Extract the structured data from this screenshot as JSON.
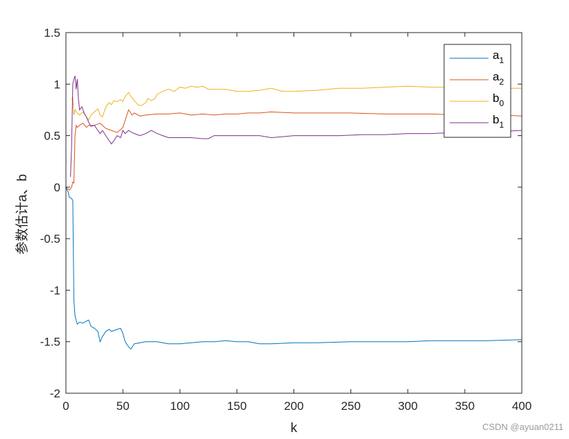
{
  "chart_data": {
    "type": "line",
    "xlabel": "k",
    "ylabel": "参数估计a、b",
    "xlim": [
      0,
      400
    ],
    "ylim": [
      -2,
      1.5
    ],
    "x_ticks": [
      0,
      50,
      100,
      150,
      200,
      250,
      300,
      350,
      400
    ],
    "x_tick_labels": [
      "0",
      "50",
      "100",
      "150",
      "200",
      "250",
      "300",
      "350",
      "400"
    ],
    "y_ticks": [
      1.5,
      1,
      0.5,
      0,
      -0.5,
      -1,
      -1.5,
      -2
    ],
    "y_tick_labels": [
      "1.5",
      "1",
      "0.5",
      "0",
      "-0.5",
      "-1",
      "-1.5",
      "-2"
    ],
    "grid": false,
    "legend_position": "top-right",
    "series": [
      {
        "name": "a",
        "sub": "1",
        "color": "#0072BD",
        "points": [
          [
            0,
            0
          ],
          [
            2,
            -0.05
          ],
          [
            3,
            -0.1
          ],
          [
            5,
            -0.11
          ],
          [
            6,
            -0.13
          ],
          [
            7,
            -1.1
          ],
          [
            8,
            -1.25
          ],
          [
            10,
            -1.33
          ],
          [
            12,
            -1.31
          ],
          [
            15,
            -1.32
          ],
          [
            18,
            -1.3
          ],
          [
            20,
            -1.29
          ],
          [
            22,
            -1.35
          ],
          [
            25,
            -1.37
          ],
          [
            28,
            -1.4
          ],
          [
            30,
            -1.5
          ],
          [
            32,
            -1.45
          ],
          [
            35,
            -1.4
          ],
          [
            38,
            -1.38
          ],
          [
            40,
            -1.4
          ],
          [
            45,
            -1.38
          ],
          [
            48,
            -1.37
          ],
          [
            50,
            -1.42
          ],
          [
            52,
            -1.5
          ],
          [
            55,
            -1.55
          ],
          [
            57,
            -1.57
          ],
          [
            60,
            -1.52
          ],
          [
            65,
            -1.51
          ],
          [
            70,
            -1.5
          ],
          [
            80,
            -1.5
          ],
          [
            90,
            -1.52
          ],
          [
            100,
            -1.52
          ],
          [
            110,
            -1.51
          ],
          [
            120,
            -1.5
          ],
          [
            130,
            -1.5
          ],
          [
            140,
            -1.49
          ],
          [
            150,
            -1.5
          ],
          [
            160,
            -1.5
          ],
          [
            170,
            -1.52
          ],
          [
            180,
            -1.52
          ],
          [
            200,
            -1.51
          ],
          [
            220,
            -1.51
          ],
          [
            250,
            -1.5
          ],
          [
            280,
            -1.5
          ],
          [
            300,
            -1.5
          ],
          [
            320,
            -1.49
          ],
          [
            350,
            -1.49
          ],
          [
            370,
            -1.49
          ],
          [
            400,
            -1.48
          ]
        ]
      },
      {
        "name": "a",
        "sub": "2",
        "color": "#D95319",
        "points": [
          [
            0,
            0
          ],
          [
            2,
            -0.02
          ],
          [
            3,
            -0.03
          ],
          [
            5,
            0
          ],
          [
            6,
            0.05
          ],
          [
            7,
            0.04
          ],
          [
            8,
            0.5
          ],
          [
            9,
            0.6
          ],
          [
            10,
            0.58
          ],
          [
            12,
            0.6
          ],
          [
            15,
            0.62
          ],
          [
            18,
            0.58
          ],
          [
            20,
            0.6
          ],
          [
            25,
            0.6
          ],
          [
            30,
            0.62
          ],
          [
            35,
            0.57
          ],
          [
            40,
            0.55
          ],
          [
            45,
            0.53
          ],
          [
            50,
            0.58
          ],
          [
            52,
            0.65
          ],
          [
            55,
            0.75
          ],
          [
            58,
            0.7
          ],
          [
            60,
            0.72
          ],
          [
            65,
            0.69
          ],
          [
            70,
            0.7
          ],
          [
            80,
            0.71
          ],
          [
            90,
            0.71
          ],
          [
            100,
            0.72
          ],
          [
            110,
            0.7
          ],
          [
            120,
            0.71
          ],
          [
            130,
            0.7
          ],
          [
            140,
            0.71
          ],
          [
            150,
            0.71
          ],
          [
            160,
            0.72
          ],
          [
            170,
            0.72
          ],
          [
            180,
            0.73
          ],
          [
            200,
            0.72
          ],
          [
            220,
            0.72
          ],
          [
            250,
            0.72
          ],
          [
            280,
            0.71
          ],
          [
            300,
            0.71
          ],
          [
            320,
            0.71
          ],
          [
            350,
            0.7
          ],
          [
            380,
            0.7
          ],
          [
            400,
            0.69
          ]
        ]
      },
      {
        "name": "b",
        "sub": "0",
        "color": "#EDB120",
        "points": [
          [
            5,
            0.85
          ],
          [
            6,
            0.87
          ],
          [
            7,
            0.7
          ],
          [
            8,
            0.75
          ],
          [
            10,
            0.72
          ],
          [
            12,
            0.7
          ],
          [
            15,
            0.73
          ],
          [
            18,
            0.68
          ],
          [
            20,
            0.65
          ],
          [
            22,
            0.7
          ],
          [
            25,
            0.73
          ],
          [
            28,
            0.76
          ],
          [
            30,
            0.7
          ],
          [
            32,
            0.68
          ],
          [
            35,
            0.78
          ],
          [
            38,
            0.82
          ],
          [
            40,
            0.8
          ],
          [
            42,
            0.84
          ],
          [
            45,
            0.83
          ],
          [
            48,
            0.85
          ],
          [
            50,
            0.83
          ],
          [
            52,
            0.88
          ],
          [
            55,
            0.92
          ],
          [
            57,
            0.88
          ],
          [
            60,
            0.84
          ],
          [
            63,
            0.8
          ],
          [
            66,
            0.79
          ],
          [
            70,
            0.82
          ],
          [
            72,
            0.86
          ],
          [
            75,
            0.84
          ],
          [
            78,
            0.86
          ],
          [
            80,
            0.9
          ],
          [
            85,
            0.93
          ],
          [
            90,
            0.95
          ],
          [
            95,
            0.93
          ],
          [
            100,
            0.97
          ],
          [
            105,
            0.96
          ],
          [
            110,
            0.98
          ],
          [
            115,
            0.97
          ],
          [
            120,
            0.98
          ],
          [
            125,
            0.95
          ],
          [
            130,
            0.95
          ],
          [
            140,
            0.95
          ],
          [
            150,
            0.93
          ],
          [
            160,
            0.93
          ],
          [
            170,
            0.94
          ],
          [
            180,
            0.96
          ],
          [
            190,
            0.93
          ],
          [
            200,
            0.93
          ],
          [
            220,
            0.94
          ],
          [
            230,
            0.95
          ],
          [
            240,
            0.96
          ],
          [
            260,
            0.96
          ],
          [
            280,
            0.97
          ],
          [
            300,
            0.98
          ],
          [
            320,
            0.97
          ],
          [
            340,
            0.97
          ],
          [
            360,
            0.97
          ],
          [
            380,
            0.96
          ],
          [
            400,
            0.96
          ]
        ]
      },
      {
        "name": "b",
        "sub": "1",
        "color": "#7E2F8E",
        "points": [
          [
            4,
            0.1
          ],
          [
            5,
            0.4
          ],
          [
            6,
            1.0
          ],
          [
            7,
            1.05
          ],
          [
            8,
            1.08
          ],
          [
            9,
            0.95
          ],
          [
            10,
            1.05
          ],
          [
            11,
            0.85
          ],
          [
            12,
            0.75
          ],
          [
            14,
            0.78
          ],
          [
            16,
            0.72
          ],
          [
            18,
            0.68
          ],
          [
            20,
            0.63
          ],
          [
            22,
            0.59
          ],
          [
            25,
            0.6
          ],
          [
            28,
            0.55
          ],
          [
            30,
            0.52
          ],
          [
            32,
            0.55
          ],
          [
            35,
            0.5
          ],
          [
            38,
            0.45
          ],
          [
            40,
            0.42
          ],
          [
            42,
            0.45
          ],
          [
            45,
            0.5
          ],
          [
            48,
            0.48
          ],
          [
            50,
            0.55
          ],
          [
            52,
            0.52
          ],
          [
            55,
            0.55
          ],
          [
            58,
            0.53
          ],
          [
            60,
            0.52
          ],
          [
            65,
            0.5
          ],
          [
            70,
            0.52
          ],
          [
            75,
            0.55
          ],
          [
            80,
            0.52
          ],
          [
            85,
            0.5
          ],
          [
            90,
            0.48
          ],
          [
            100,
            0.48
          ],
          [
            110,
            0.48
          ],
          [
            120,
            0.47
          ],
          [
            125,
            0.47
          ],
          [
            130,
            0.5
          ],
          [
            140,
            0.5
          ],
          [
            150,
            0.5
          ],
          [
            160,
            0.5
          ],
          [
            170,
            0.5
          ],
          [
            180,
            0.48
          ],
          [
            190,
            0.49
          ],
          [
            200,
            0.5
          ],
          [
            220,
            0.5
          ],
          [
            240,
            0.5
          ],
          [
            260,
            0.51
          ],
          [
            280,
            0.51
          ],
          [
            300,
            0.52
          ],
          [
            320,
            0.52
          ],
          [
            340,
            0.53
          ],
          [
            360,
            0.53
          ],
          [
            380,
            0.54
          ],
          [
            400,
            0.55
          ]
        ]
      }
    ]
  },
  "watermark": "CSDN @ayuan0211"
}
